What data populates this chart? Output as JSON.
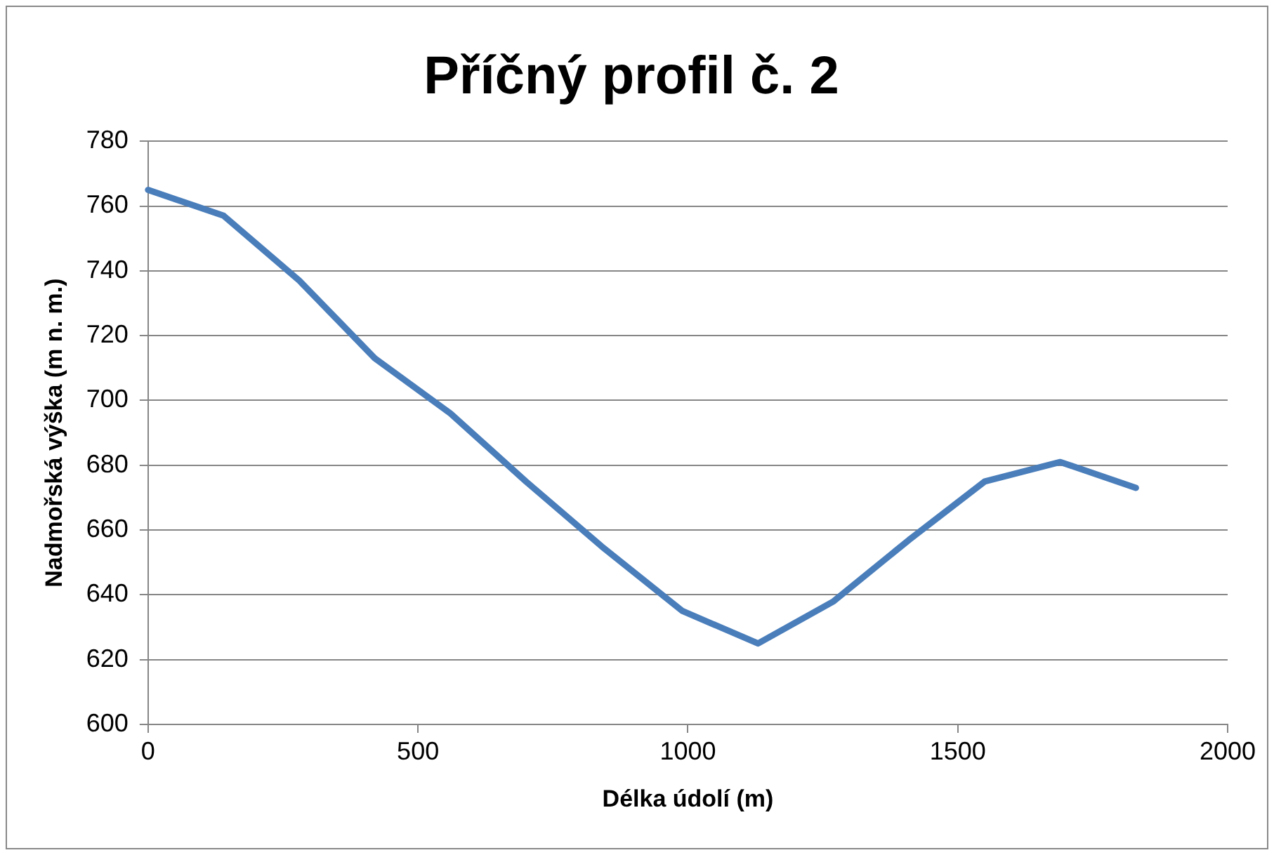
{
  "chart_data": {
    "type": "line",
    "title": "Příčný profil č. 2",
    "xlabel": "Délka údolí (m)",
    "ylabel": "Nadmořská výška (m n. m.)",
    "series": [
      {
        "color": "#4a7ebb",
        "x": [
          0,
          140,
          280,
          420,
          560,
          700,
          840,
          990,
          1130,
          1270,
          1410,
          1550,
          1690,
          1830
        ],
        "values": [
          765,
          757,
          737,
          713,
          696,
          675,
          655,
          635,
          625,
          638,
          657,
          675,
          681,
          673
        ]
      }
    ],
    "xlim": [
      0,
      2000
    ],
    "xticks": [
      0,
      500,
      1000,
      1500,
      2000
    ],
    "ylim": [
      600,
      780
    ],
    "yticks": [
      600,
      620,
      640,
      660,
      680,
      700,
      720,
      740,
      760,
      780
    ],
    "grid": "y",
    "legend": false,
    "marker": "none",
    "line_style": "solid"
  }
}
